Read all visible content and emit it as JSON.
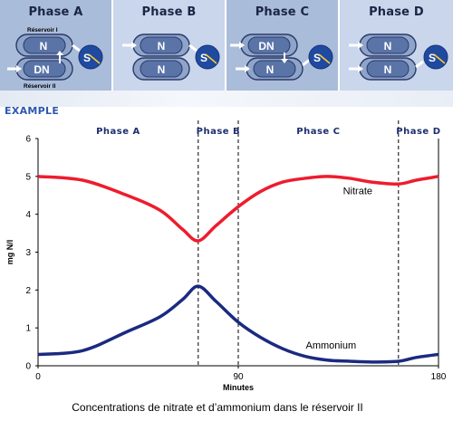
{
  "phases_panel": {
    "panels": [
      {
        "title": "Phase A",
        "top_node": "N",
        "bottom_node": "DN",
        "sensor": "S",
        "reservoir_top": "Réservoir I",
        "reservoir_bottom": "Réservoir II"
      },
      {
        "title": "Phase B",
        "top_node": "N",
        "bottom_node": "N",
        "sensor": "S"
      },
      {
        "title": "Phase C",
        "top_node": "DN",
        "bottom_node": "N",
        "sensor": "S"
      },
      {
        "title": "Phase D",
        "top_node": "N",
        "bottom_node": "N",
        "sensor": "S"
      }
    ]
  },
  "example_label": "EXAMPLE",
  "caption": "Concentrations de nitrate et d’ammonium dans le réservoir II",
  "colors": {
    "nitrate": "#ee1c2e",
    "ammonium": "#1b2a80",
    "panel_dark": "#a9bcd9",
    "panel_light": "#c9d6eb"
  },
  "chart_data": {
    "type": "line",
    "xlabel": "Minutes",
    "ylabel": "mg N/l",
    "xlim": [
      0,
      180
    ],
    "ylim": [
      0,
      6
    ],
    "xticks": [
      0,
      90,
      180
    ],
    "yticks": [
      0,
      1,
      2,
      3,
      4,
      5,
      6
    ],
    "phase_labels": [
      "Phase A",
      "Phase B",
      "Phase C",
      "Phase D"
    ],
    "phase_boundaries": [
      72,
      90,
      162
    ],
    "series": [
      {
        "name": "Nitrate",
        "x": [
          0,
          20,
          40,
          55,
          65,
          72,
          80,
          90,
          100,
          110,
          120,
          130,
          140,
          150,
          162,
          170,
          180
        ],
        "y": [
          5.0,
          4.9,
          4.5,
          4.1,
          3.6,
          3.3,
          3.7,
          4.2,
          4.6,
          4.85,
          4.95,
          5.0,
          4.95,
          4.85,
          4.8,
          4.9,
          5.0
        ]
      },
      {
        "name": "Ammonium",
        "x": [
          0,
          20,
          40,
          55,
          65,
          72,
          80,
          90,
          100,
          110,
          120,
          130,
          140,
          150,
          162,
          170,
          180
        ],
        "y": [
          0.3,
          0.4,
          0.9,
          1.3,
          1.75,
          2.1,
          1.7,
          1.15,
          0.75,
          0.45,
          0.25,
          0.15,
          0.12,
          0.1,
          0.12,
          0.22,
          0.3
        ]
      }
    ]
  }
}
